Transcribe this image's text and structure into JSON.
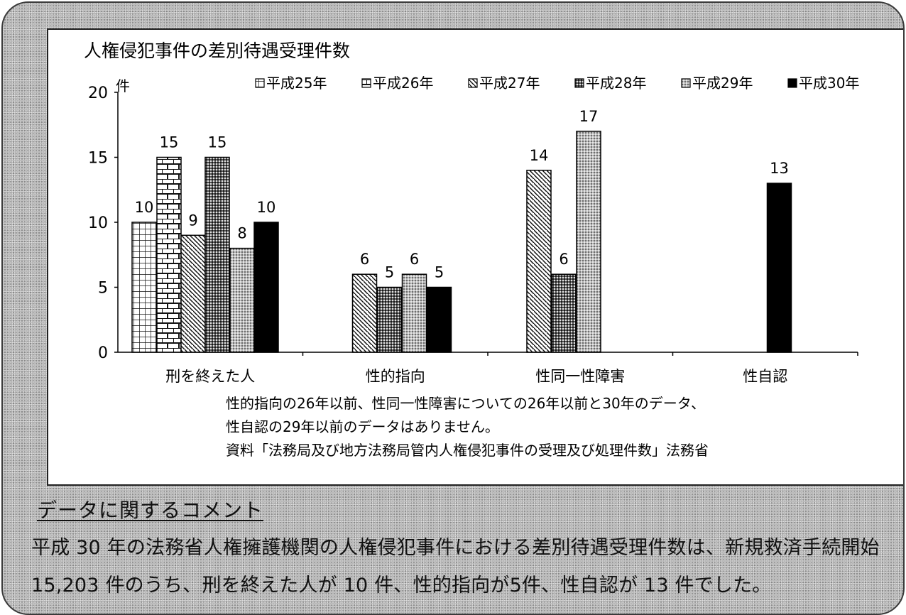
{
  "chart_data": {
    "type": "bar",
    "title": "人権侵犯事件の差別待遇受理件数",
    "ylabel": "件",
    "ylim": [
      0,
      20
    ],
    "yticks": [
      0,
      5,
      10,
      15,
      20
    ],
    "categories": [
      "刑を終えた人",
      "性的指向",
      "性同一性障害",
      "性自認"
    ],
    "legend_position": "top",
    "series": [
      {
        "name": "平成25年",
        "values": [
          10,
          null,
          null,
          null
        ],
        "pattern": "grid"
      },
      {
        "name": "平成26年",
        "values": [
          15,
          null,
          null,
          null
        ],
        "pattern": "brick"
      },
      {
        "name": "平成27年",
        "values": [
          9,
          6,
          14,
          null
        ],
        "pattern": "diagonal"
      },
      {
        "name": "平成28年",
        "values": [
          15,
          5,
          6,
          null
        ],
        "pattern": "dots"
      },
      {
        "name": "平成29年",
        "values": [
          8,
          6,
          17,
          null
        ],
        "pattern": "checker"
      },
      {
        "name": "平成30年",
        "values": [
          10,
          5,
          null,
          13
        ],
        "pattern": "solid"
      }
    ],
    "notes": [
      "性的指向の26年以前、性同一性障害についての26年以前と30年のデータ、",
      "性自認の29年以前のデータはありません。",
      "資料「法務局及び地方法務局管内人権侵犯事件の受理及び処理件数」法務省"
    ]
  },
  "comment": {
    "heading": "データに関するコメント",
    "lines": [
      "平成 30 年の法務省人権擁護機関の人権侵犯事件における差別待遇受理件数は、新規救済手続開始",
      "15,203 件のうち、刑を終えた人が 10 件、性的指向が5件、性自認が 13 件でした。"
    ]
  }
}
